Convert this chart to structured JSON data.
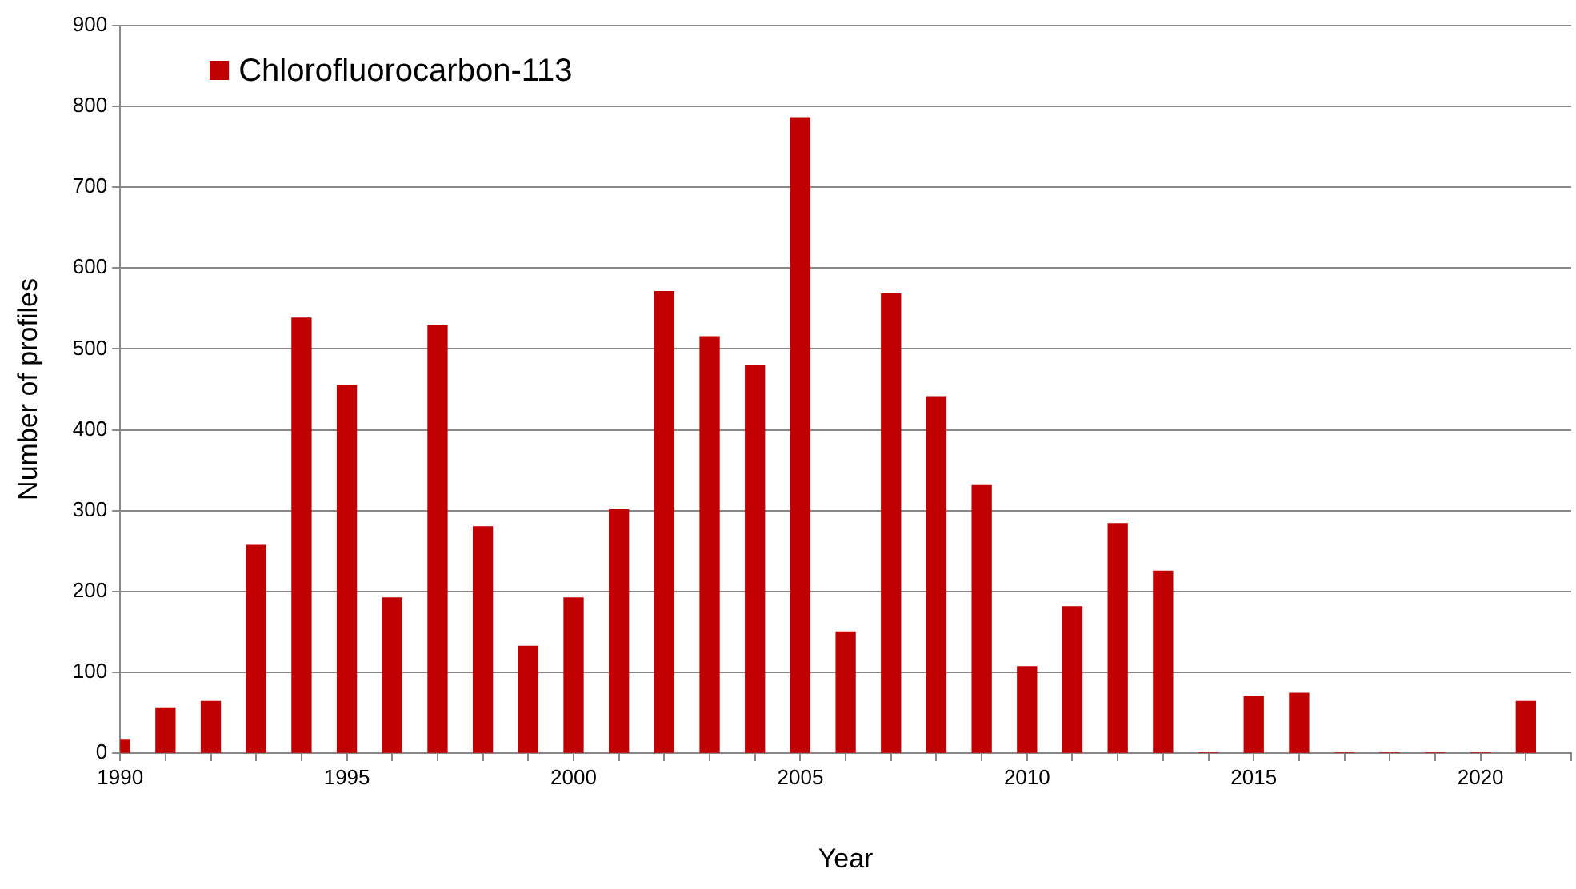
{
  "chart_data": {
    "type": "bar",
    "xlabel": "Year",
    "ylabel": "Number of profiles",
    "x": [
      1990,
      1991,
      1992,
      1993,
      1994,
      1995,
      1996,
      1997,
      1998,
      1999,
      2000,
      2001,
      2002,
      2003,
      2004,
      2005,
      2006,
      2007,
      2008,
      2009,
      2010,
      2011,
      2012,
      2013,
      2014,
      2015,
      2016,
      2017,
      2018,
      2019,
      2020,
      2021
    ],
    "series": [
      {
        "name": "Chlorofluorocarbon-113",
        "color": "#c00000",
        "values": [
          17,
          56,
          64,
          257,
          538,
          455,
          192,
          529,
          280,
          132,
          192,
          301,
          571,
          515,
          480,
          786,
          150,
          568,
          441,
          331,
          107,
          181,
          284,
          225,
          0,
          70,
          74,
          0,
          0,
          0,
          0,
          64
        ]
      }
    ],
    "xlim": [
      1990,
      2022
    ],
    "xticks": [
      1990,
      {
        "value": 1991,
        "label": null
      },
      {
        "value": 1992,
        "label": null
      },
      {
        "value": 1993,
        "label": null
      },
      {
        "value": 1994,
        "label": null
      },
      1995,
      {
        "value": 1996,
        "label": null
      },
      {
        "value": 1997,
        "label": null
      },
      {
        "value": 1998,
        "label": null
      },
      {
        "value": 1999,
        "label": null
      },
      2000,
      {
        "value": 2001,
        "label": null
      },
      {
        "value": 2002,
        "label": null
      },
      {
        "value": 2003,
        "label": null
      },
      {
        "value": 2004,
        "label": null
      },
      2005,
      {
        "value": 2006,
        "label": null
      },
      {
        "value": 2007,
        "label": null
      },
      {
        "value": 2008,
        "label": null
      },
      {
        "value": 2009,
        "label": null
      },
      2010,
      {
        "value": 2011,
        "label": null
      },
      {
        "value": 2012,
        "label": null
      },
      {
        "value": 2013,
        "label": null
      },
      {
        "value": 2014,
        "label": null
      },
      2015,
      {
        "value": 2016,
        "label": null
      },
      {
        "value": 2017,
        "label": null
      },
      {
        "value": 2018,
        "label": null
      },
      {
        "value": 2019,
        "label": null
      },
      2020,
      {
        "value": 2021,
        "label": null
      },
      {
        "value": 2022,
        "label": null
      }
    ],
    "ylim": [
      0,
      900
    ],
    "yticks": [
      0,
      100,
      200,
      300,
      400,
      500,
      600,
      700,
      800,
      900
    ],
    "grid": "y",
    "legend": "top left"
  }
}
